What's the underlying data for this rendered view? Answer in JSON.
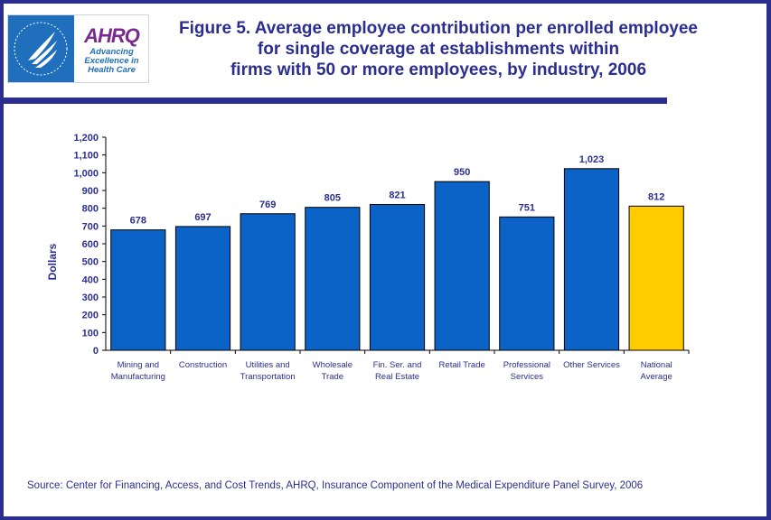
{
  "header": {
    "logo_left": "U.S. Department of Health & Human Services · USA",
    "logo_brand": "AHRQ",
    "logo_tagline": [
      "Advancing",
      "Excellence in",
      "Health Care"
    ],
    "title_lines": [
      "Figure 5. Average employee contribution per enrolled employee",
      "for single coverage at establishments within",
      "firms with 50 or more employees, by industry, 2006"
    ]
  },
  "colors": {
    "frame": "#2b2e8f",
    "bar": "#0b63c8",
    "highlight_bar": "#ffcc00",
    "text": "#2b2e8f"
  },
  "chart_data": {
    "type": "bar",
    "title": "Figure 5. Average employee contribution per enrolled employee for single coverage at establishments within firms with 50 or more employees, by industry, 2006",
    "xlabel": "",
    "ylabel": "Dollars",
    "ylim": [
      0,
      1200
    ],
    "yticks": [
      0,
      100,
      200,
      300,
      400,
      500,
      600,
      700,
      800,
      900,
      1000,
      1100,
      1200
    ],
    "ytick_labels": [
      "0",
      "100",
      "200",
      "300",
      "400",
      "500",
      "600",
      "700",
      "800",
      "900",
      "1,000",
      "1,100",
      "1,200"
    ],
    "grid": false,
    "categories": [
      [
        "Mining and",
        "Manufacturing"
      ],
      [
        "Construction"
      ],
      [
        "Utilities and",
        "Transportation"
      ],
      [
        "Wholesale",
        "Trade"
      ],
      [
        "Fin. Ser. and",
        "Real Estate"
      ],
      [
        "Retail Trade"
      ],
      [
        "Professional",
        "Services"
      ],
      [
        "Other Services"
      ],
      [
        "National",
        "Average"
      ]
    ],
    "values": [
      678,
      697,
      769,
      805,
      821,
      950,
      751,
      1023,
      812
    ],
    "data_labels": [
      "678",
      "697",
      "769",
      "805",
      "821",
      "950",
      "751",
      "1,023",
      "812"
    ],
    "highlight_index": 8
  },
  "footer": {
    "source": "Source: Center for Financing, Access, and Cost Trends, AHRQ, Insurance Component of the Medical Expenditure Panel Survey, 2006"
  }
}
